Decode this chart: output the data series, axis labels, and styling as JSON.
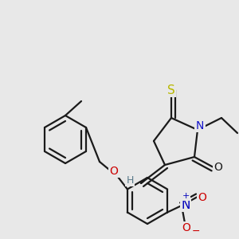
{
  "bg_color": "#e8e8e8",
  "bond_color": "#1a1a1a",
  "bond_lw": 1.6,
  "figsize": [
    3.0,
    3.0
  ],
  "dpi": 100,
  "atom_colors": {
    "S_thioxo": "#b8b800",
    "S_ring": "#1a1a1a",
    "N": "#1414cc",
    "O": "#cc0000",
    "H": "#5a7a8a",
    "C": "#1a1a1a",
    "N_nitro": "#0000bb",
    "O_nitro": "#cc0000"
  }
}
